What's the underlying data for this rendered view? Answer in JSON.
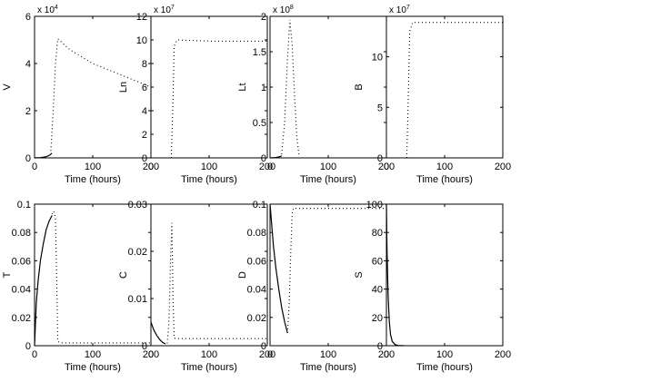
{
  "chart_data": [
    {
      "type": "line",
      "ylabel": "V",
      "xlabel": "Time (hours)",
      "multiplier": "x 10",
      "exponent": "4",
      "xlim": [
        0,
        200
      ],
      "ylim": [
        0,
        6
      ],
      "xticks": [
        0,
        100,
        200
      ],
      "yticks": [
        0,
        2,
        4,
        6
      ],
      "series": [
        {
          "style": "solid",
          "x": [
            0,
            10,
            20,
            25,
            30
          ],
          "y": [
            0,
            0.01,
            0.05,
            0.1,
            0.2
          ]
        },
        {
          "style": "dotted",
          "x": [
            28,
            32,
            36,
            40,
            60,
            100,
            150,
            200
          ],
          "y": [
            0.3,
            2.0,
            4.0,
            5.05,
            4.6,
            4.0,
            3.5,
            3.0
          ]
        }
      ]
    },
    {
      "type": "line",
      "ylabel": "Ln",
      "xlabel": "Time (hours)",
      "multiplier": "x 10",
      "exponent": "7",
      "xlim": [
        0,
        200
      ],
      "ylim": [
        0,
        12
      ],
      "xticks": [
        0,
        100,
        200
      ],
      "yticks": [
        0,
        2,
        4,
        6,
        8,
        10,
        12
      ],
      "series": [
        {
          "style": "dotted",
          "x": [
            35,
            38,
            40,
            45,
            100,
            200
          ],
          "y": [
            0,
            5,
            9.5,
            10,
            9.9,
            9.9
          ]
        }
      ]
    },
    {
      "type": "line",
      "ylabel": "Lt",
      "xlabel": "Time (hours)",
      "multiplier": "x 10",
      "exponent": "8",
      "xlim": [
        0,
        200
      ],
      "ylim": [
        0,
        2
      ],
      "xticks": [
        0,
        100,
        200
      ],
      "yticks": [
        0,
        0.5,
        1,
        1.5,
        2
      ],
      "series": [
        {
          "style": "solid",
          "x": [
            0,
            10,
            18,
            20
          ],
          "y": [
            0,
            0.005,
            0.02,
            0.03
          ]
        },
        {
          "style": "dotted",
          "x": [
            20,
            25,
            30,
            34,
            38,
            42,
            46,
            50
          ],
          "y": [
            0.05,
            0.5,
            1.4,
            1.95,
            1.6,
            0.9,
            0.3,
            0.02
          ]
        }
      ]
    },
    {
      "type": "line",
      "ylabel": "B",
      "xlabel": "Time (hours)",
      "multiplier": "x 10",
      "exponent": "7",
      "xlim": [
        0,
        200
      ],
      "ylim": [
        0,
        14
      ],
      "xticks": [
        0,
        100,
        200
      ],
      "yticks": [
        0,
        5,
        10
      ],
      "series": [
        {
          "style": "dotted",
          "x": [
            35,
            38,
            40,
            45,
            100,
            200
          ],
          "y": [
            0,
            7,
            12.5,
            13.4,
            13.4,
            13.4
          ]
        }
      ]
    },
    {
      "type": "line",
      "ylabel": "T",
      "xlabel": "Time (hours)",
      "multiplier": "",
      "xlim": [
        0,
        200
      ],
      "ylim": [
        0,
        0.1
      ],
      "xticks": [
        0,
        100,
        200
      ],
      "yticks": [
        0,
        0.02,
        0.04,
        0.06,
        0.08,
        0.1
      ],
      "series": [
        {
          "style": "solid",
          "x": [
            0,
            3,
            6,
            10,
            15,
            20,
            25,
            30
          ],
          "y": [
            0,
            0.03,
            0.045,
            0.06,
            0.072,
            0.082,
            0.088,
            0.092
          ]
        },
        {
          "style": "dotted",
          "x": [
            30,
            33,
            36,
            38,
            40,
            45,
            100,
            200
          ],
          "y": [
            0.093,
            0.095,
            0.09,
            0.05,
            0.003,
            0.002,
            0.002,
            0.002
          ]
        }
      ]
    },
    {
      "type": "line",
      "ylabel": "C",
      "xlabel": "Time (hours)",
      "multiplier": "",
      "xlim": [
        0,
        200
      ],
      "ylim": [
        0,
        0.03
      ],
      "xticks": [
        0,
        100,
        200
      ],
      "yticks": [
        0,
        0.01,
        0.02,
        0.03
      ],
      "series": [
        {
          "style": "solid",
          "x": [
            0,
            5,
            10,
            15,
            20,
            25
          ],
          "y": [
            0.005,
            0.0033,
            0.0022,
            0.0013,
            0.0007,
            0.0004
          ]
        },
        {
          "style": "dotted",
          "x": [
            28,
            31,
            34,
            36,
            38,
            40,
            45,
            100,
            200
          ],
          "y": [
            0.0005,
            0.005,
            0.02,
            0.026,
            0.01,
            0.0016,
            0.0015,
            0.0015,
            0.0015
          ]
        }
      ]
    },
    {
      "type": "line",
      "ylabel": "D",
      "xlabel": "Time (hours)",
      "multiplier": "",
      "xlim": [
        0,
        200
      ],
      "ylim": [
        0,
        0.1
      ],
      "xticks": [
        0,
        100,
        200
      ],
      "yticks": [
        0,
        0.02,
        0.04,
        0.06,
        0.08,
        0.1
      ],
      "series": [
        {
          "style": "solid",
          "x": [
            0,
            3,
            6,
            10,
            15,
            20,
            25,
            30
          ],
          "y": [
            0.1,
            0.085,
            0.07,
            0.055,
            0.04,
            0.027,
            0.017,
            0.009
          ]
        },
        {
          "style": "dotted",
          "x": [
            30,
            33,
            36,
            38,
            40,
            45,
            100,
            200
          ],
          "y": [
            0.009,
            0.03,
            0.07,
            0.093,
            0.097,
            0.097,
            0.097,
            0.097
          ]
        }
      ]
    },
    {
      "type": "line",
      "ylabel": "S",
      "xlabel": "Time (hours)",
      "multiplier": "",
      "xlim": [
        0,
        200
      ],
      "ylim": [
        0,
        100
      ],
      "xticks": [
        0,
        100,
        200
      ],
      "yticks": [
        0,
        20,
        40,
        60,
        80,
        100
      ],
      "series": [
        {
          "style": "solid",
          "x": [
            0,
            1,
            2,
            3,
            5,
            7,
            10,
            15,
            20,
            30
          ],
          "y": [
            100,
            70,
            50,
            35,
            17,
            8,
            3,
            0.8,
            0.2,
            0
          ]
        }
      ]
    }
  ]
}
